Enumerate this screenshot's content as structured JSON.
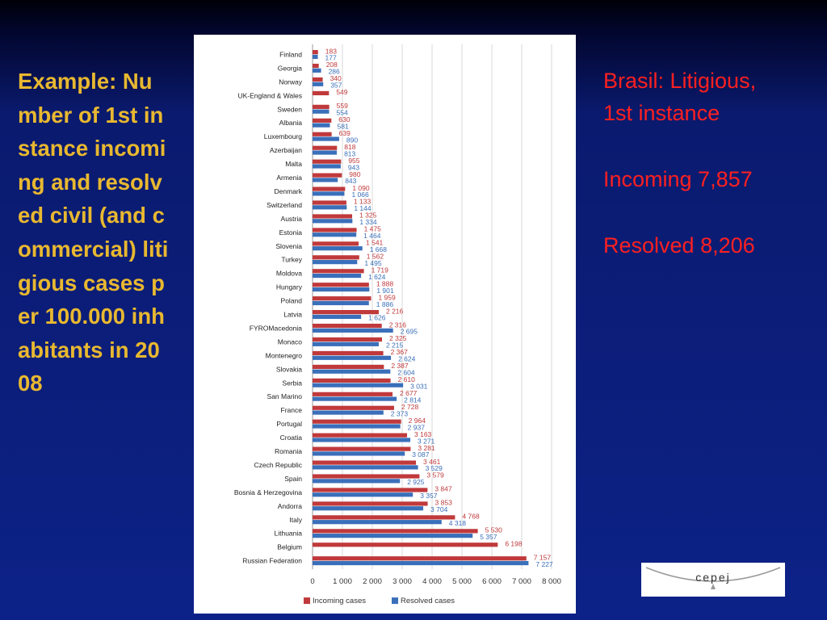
{
  "slide": {
    "title": "Example: Number of 1st instance incoming and resolved civil (and commercial) litigious cases per 100.000 inhabitants in 2008"
  },
  "side_note": {
    "heading": "Brasil: Litigious, 1st instance",
    "incoming": "Incoming 7,857",
    "resolved": "Resolved 8,206"
  },
  "logo": {
    "text": "cepej"
  },
  "colors": {
    "incoming": "#c0393b",
    "resolved": "#3a6fba",
    "grid": "#d9d9d9"
  },
  "chart_data": {
    "type": "bar",
    "orientation": "horizontal",
    "categories": [
      "Finland",
      "Georgia",
      "Norway",
      "UK-England & Wales",
      "Sweden",
      "Albania",
      "Luxembourg",
      "Azerbaijan",
      "Malta",
      "Armenia",
      "Denmark",
      "Switzerland",
      "Austria",
      "Estonia",
      "Slovenia",
      "Turkey",
      "Moldova",
      "Hungary",
      "Poland",
      "Latvia",
      "FYROMacedonia",
      "Monaco",
      "Montenegro",
      "Slovakia",
      "Serbia",
      "San Marino",
      "France",
      "Portugal",
      "Croatia",
      "Romania",
      "Czech Republic",
      "Spain",
      "Bosnia & Herzegovina",
      "Andorra",
      "Italy",
      "Lithuania",
      "Belgium",
      "Russian Federation"
    ],
    "series": [
      {
        "name": "Incoming cases",
        "values": [
          183,
          208,
          340,
          549,
          559,
          630,
          639,
          818,
          955,
          980,
          1090,
          1133,
          1325,
          1475,
          1541,
          1562,
          1719,
          1888,
          1959,
          2216,
          2316,
          2325,
          2367,
          2387,
          2610,
          2677,
          2728,
          2964,
          3163,
          3281,
          3461,
          3579,
          3847,
          3853,
          4768,
          5530,
          6198,
          7157
        ],
        "labels": [
          "183",
          "208",
          "340",
          "549",
          "559",
          "630",
          "639",
          "818",
          "955",
          "980",
          "1 090",
          "1 133",
          "1 325",
          "1 475",
          "1 541",
          "1 562",
          "1 719",
          "1 888",
          "1 959",
          "2 216",
          "2 316",
          "2 325",
          "2 367",
          "2 387",
          "2 610",
          "2 677",
          "2 728",
          "2 964",
          "3 163",
          "3 281",
          "3 461",
          "3 579",
          "3 847",
          "3 853",
          "4 768",
          "5 530",
          "6 198",
          "7 157"
        ]
      },
      {
        "name": "Resolved cases",
        "values": [
          177,
          286,
          357,
          null,
          554,
          581,
          890,
          813,
          943,
          843,
          1066,
          1144,
          1334,
          1464,
          1668,
          1495,
          1624,
          1901,
          1886,
          1626,
          2695,
          2215,
          2624,
          2604,
          3031,
          2814,
          2373,
          2937,
          3271,
          3087,
          3529,
          2925,
          3357,
          3704,
          4318,
          5357,
          null,
          7227
        ],
        "labels": [
          "177",
          "286",
          "357",
          "",
          "554",
          "581",
          "890",
          "813",
          "943",
          "843",
          "1 066",
          "1 144",
          "1 334",
          "1 464",
          "1 668",
          "1 495",
          "1 624",
          "1 901",
          "1 886",
          "1 626",
          "2 695",
          "2 215",
          "2 624",
          "2 604",
          "3 031",
          "2 814",
          "2 373",
          "2 937",
          "3 271",
          "3 087",
          "3 529",
          "2 925",
          "3 357",
          "3 704",
          "4 318",
          "5 357",
          "",
          "7 227"
        ]
      }
    ],
    "xlim": [
      0,
      8000
    ],
    "xticks": [
      "0",
      "1 000",
      "2 000",
      "3 000",
      "4 000",
      "5 000",
      "6 000",
      "7 000",
      "8 000"
    ],
    "grid": true,
    "legend_position": "bottom"
  }
}
